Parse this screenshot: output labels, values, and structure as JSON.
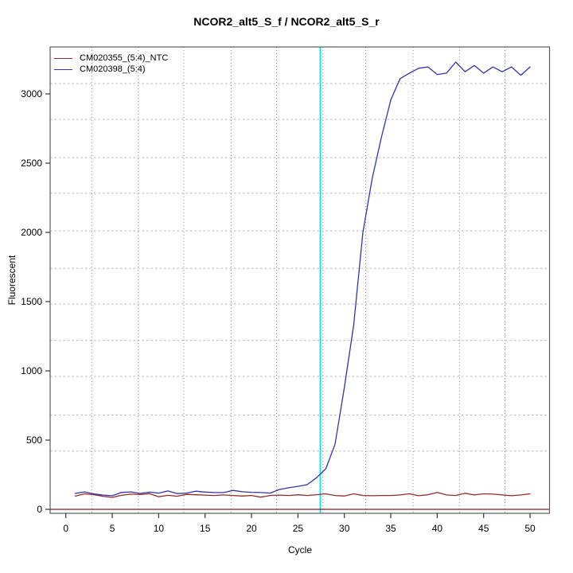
{
  "chart_data": {
    "type": "line",
    "title": "NCOR2_alt5_S_f / NCOR2_alt5_S_r",
    "xlabel": "Cycle",
    "ylabel": "Fluorescent",
    "x_ticks": [
      0,
      5,
      10,
      15,
      20,
      25,
      30,
      35,
      40,
      45,
      50
    ],
    "y_ticks": [
      0,
      500,
      1000,
      1500,
      2000,
      2500,
      3000
    ],
    "xlim": [
      -1.7,
      52.2
    ],
    "ylim": [
      -35,
      3375
    ],
    "grid": true,
    "legend_position": "top-left",
    "grid_x_cycles": [
      2.8,
      7.8,
      12.7,
      17.8,
      22.7,
      27.7,
      32.3,
      37.4,
      42.4,
      47.3
    ],
    "grid_y_values": [
      420,
      680,
      960,
      1220,
      1483,
      1741,
      2011,
      2282,
      2540,
      2816,
      3075
    ],
    "threshold_line": {
      "x": 27.4,
      "color": "#00E0E6"
    },
    "zero_line": {
      "y": 0,
      "color": "#8B1A1A"
    },
    "x": [
      1,
      2,
      3,
      4,
      5,
      6,
      7,
      8,
      9,
      10,
      11,
      12,
      13,
      14,
      15,
      16,
      17,
      18,
      19,
      20,
      21,
      22,
      23,
      24,
      25,
      26,
      27,
      28,
      29,
      30,
      31,
      32,
      33,
      34,
      35,
      36,
      37,
      38,
      39,
      40,
      41,
      42,
      43,
      44,
      45,
      46,
      47,
      48,
      49,
      50
    ],
    "series": [
      {
        "name": "CM020355_(5:4)_NTC",
        "color": "#8F2D28",
        "values": [
          95,
          112,
          106,
          94,
          86,
          101,
          110,
          107,
          113,
          91,
          101,
          95,
          108,
          105,
          103,
          100,
          104,
          100,
          96,
          100,
          88,
          100,
          103,
          100,
          105,
          100,
          106,
          112,
          100,
          96,
          112,
          100,
          98,
          100,
          100,
          104,
          112,
          98,
          106,
          122,
          104,
          100,
          116,
          104,
          112,
          110,
          104,
          98,
          104,
          112
        ]
      },
      {
        "name": "CM020398_(5:4)",
        "color": "#3434A8",
        "values": [
          115,
          126,
          112,
          103,
          98,
          122,
          126,
          115,
          124,
          117,
          133,
          114,
          117,
          131,
          125,
          121,
          121,
          137,
          127,
          123,
          121,
          117,
          143,
          156,
          166,
          178,
          228,
          293,
          470,
          880,
          1330,
          2000,
          2390,
          2690,
          2955,
          3110,
          3150,
          3185,
          3195,
          3140,
          3150,
          3230,
          3160,
          3205,
          3150,
          3195,
          3160,
          3195,
          3135,
          3195
        ]
      }
    ],
    "style": {
      "box_color": "#5A5A5A",
      "tick_color": "#333333",
      "tick_label_color": "#000000",
      "grid_v_color": "#8A8A8A",
      "grid_h_color": "#B8B8B8"
    }
  }
}
